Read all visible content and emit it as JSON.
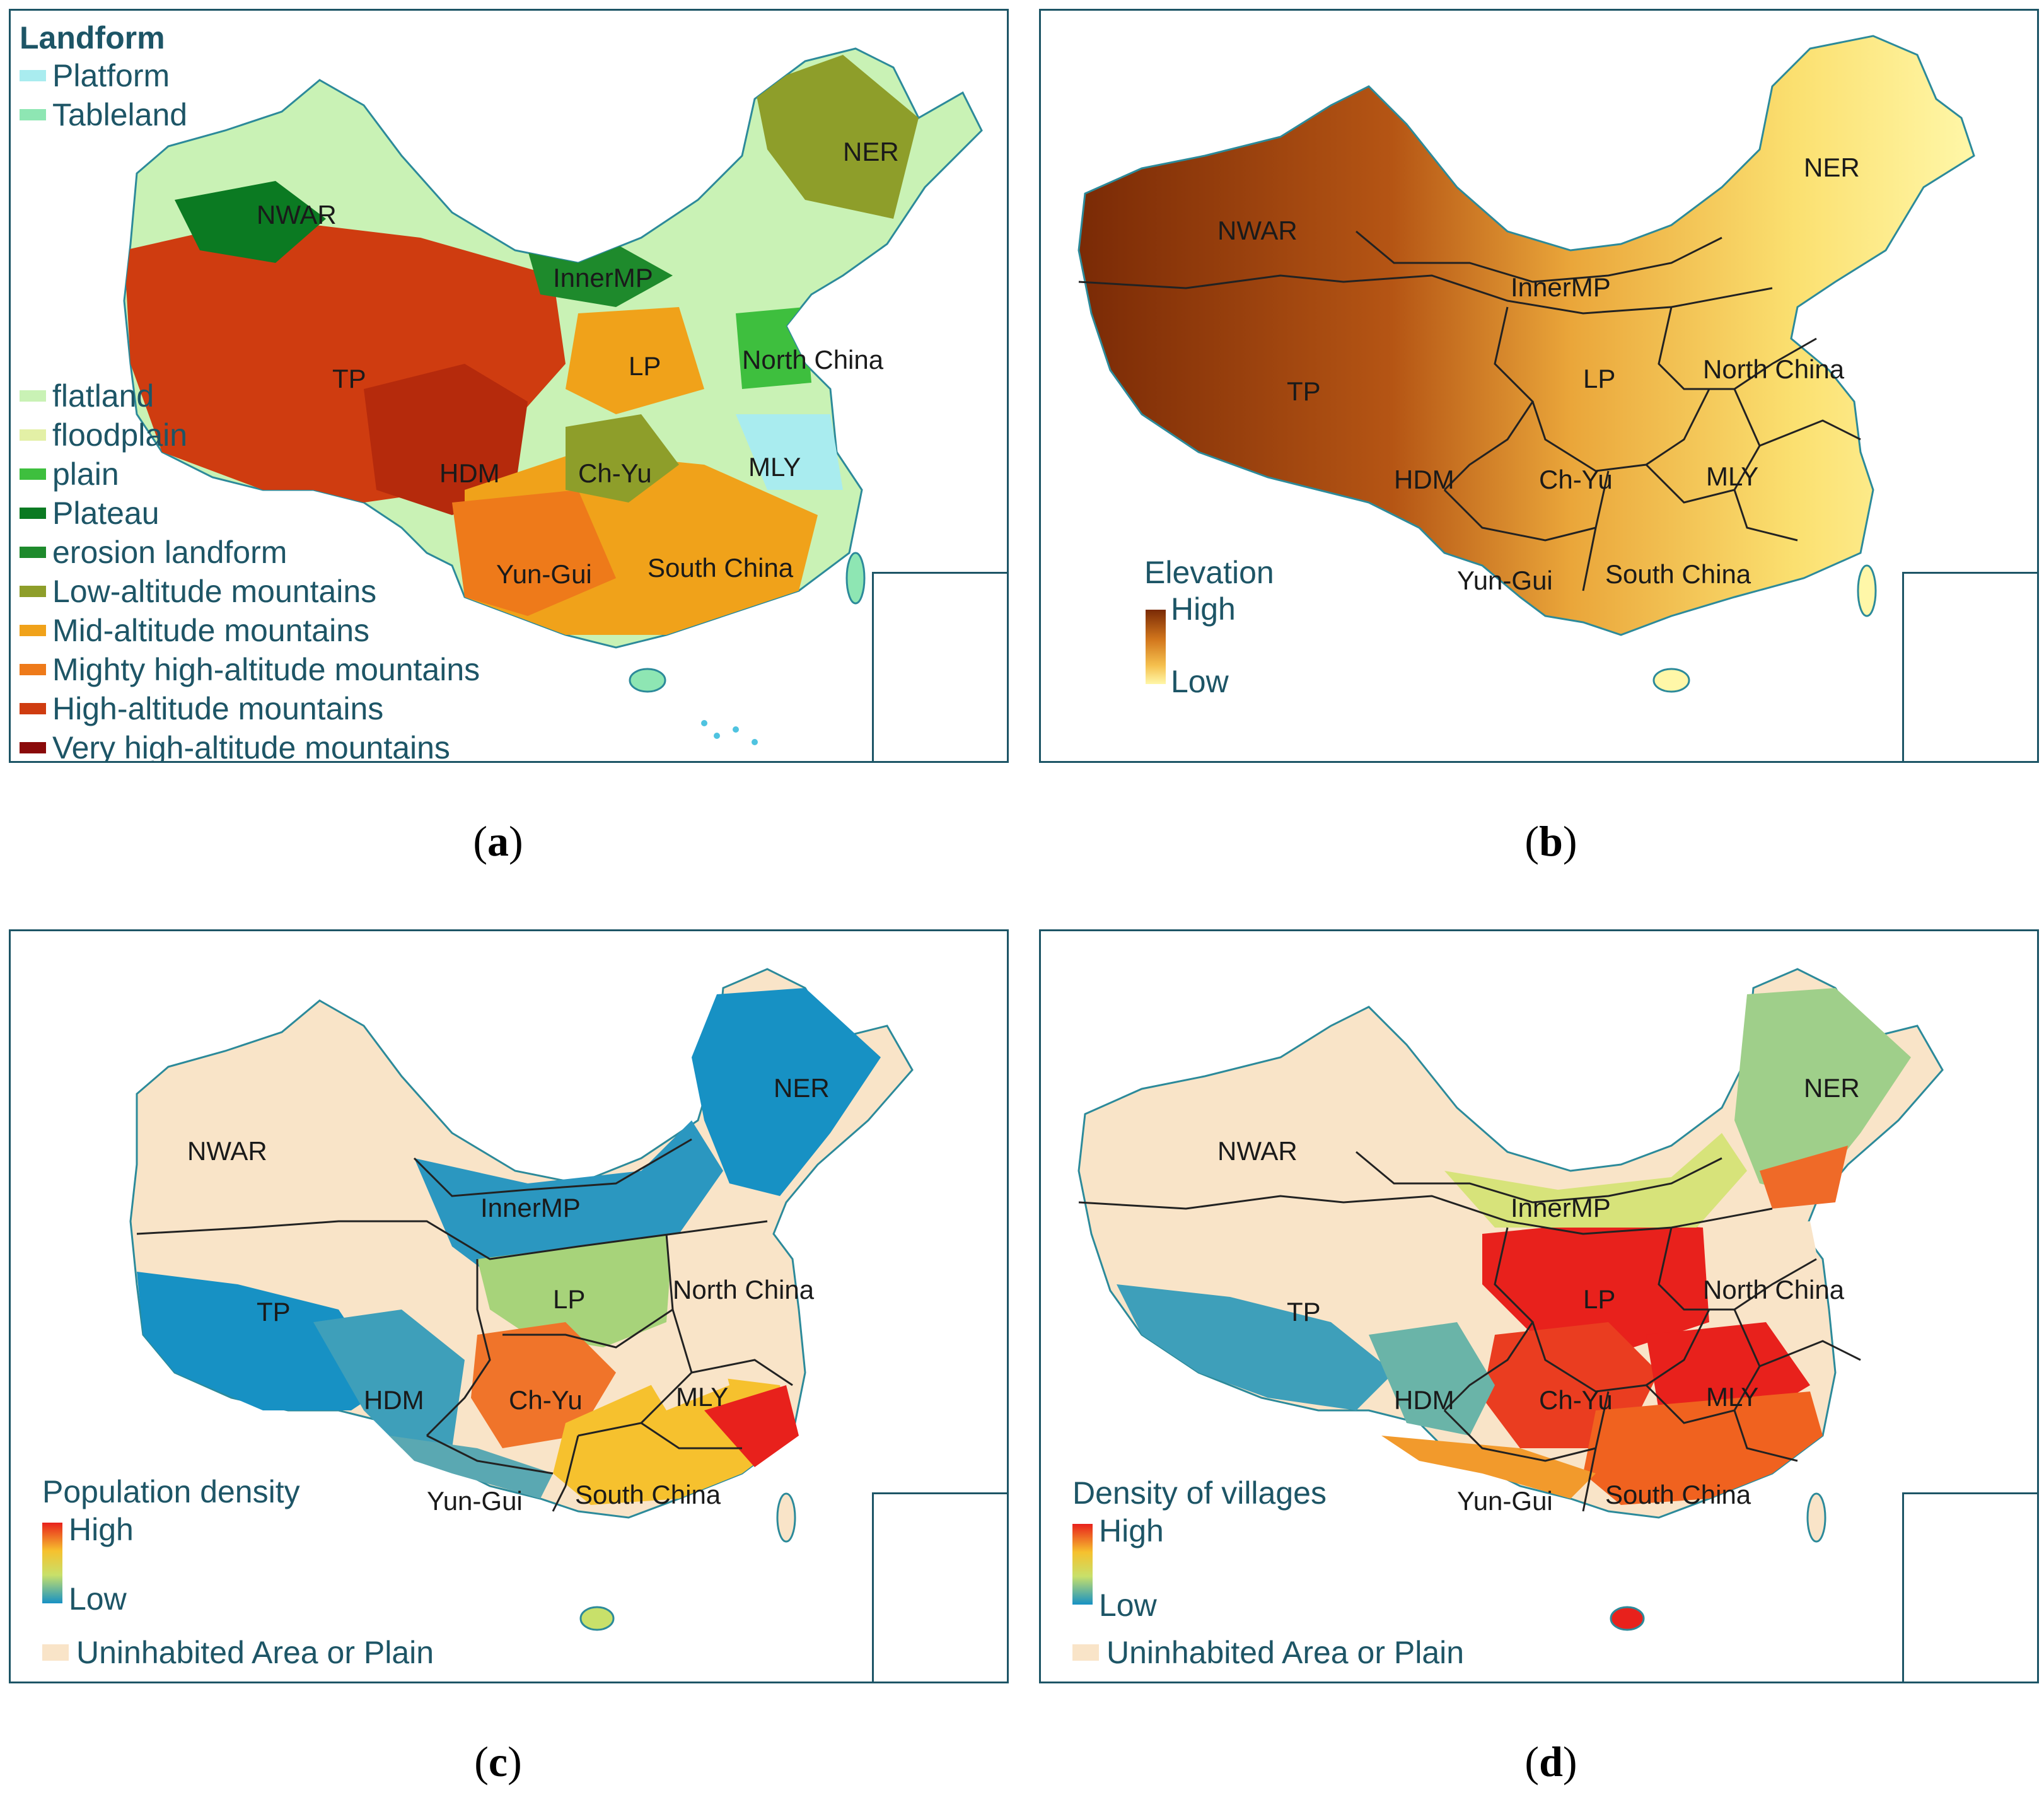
{
  "panels": {
    "a": {
      "caption": "a",
      "legend_title": "Landform",
      "legend_top": [
        {
          "label": "Platform",
          "color": "#a9ecef"
        },
        {
          "label": "Tableland",
          "color": "#8ee6b3"
        }
      ],
      "legend_bottom": [
        {
          "label": "flatland",
          "color": "#c9f2b5"
        },
        {
          "label": "floodplain",
          "color": "#e3f0a6"
        },
        {
          "label": "plain",
          "color": "#3ebf3e"
        },
        {
          "label": "Plateau",
          "color": "#0b7a22"
        },
        {
          "label": "erosion landform",
          "color": "#1e8a2c"
        },
        {
          "label": "Low-altitude mountains",
          "color": "#8e9e2a"
        },
        {
          "label": "Mid-altitude mountains",
          "color": "#f0a21a"
        },
        {
          "label": "Mighty high-altitude mountains",
          "color": "#ee7a1a"
        },
        {
          "label": "High-altitude mountains",
          "color": "#cf3c10"
        },
        {
          "label": "Very high-altitude mountains",
          "color": "#8a0a0a"
        }
      ]
    },
    "b": {
      "caption": "b",
      "ramp_title": "Elevation",
      "ramp_high": "High",
      "ramp_low": "Low",
      "ramp_colors": [
        "#7a2a06",
        "#d2761c",
        "#f5c04e",
        "#fff7a8"
      ]
    },
    "c": {
      "caption": "c",
      "ramp_title": "Population density",
      "ramp_high": "High",
      "ramp_low": "Low",
      "uninhabited": "Uninhabited Area or Plain",
      "ramp_colors": [
        "#e8211c",
        "#f6c12e",
        "#c8e06a",
        "#1791c4"
      ]
    },
    "d": {
      "caption": "d",
      "ramp_title": "Density of villages",
      "ramp_high": "High",
      "ramp_low": "Low",
      "uninhabited": "Uninhabited Area or Plain",
      "ramp_colors": [
        "#e8211c",
        "#f6c12e",
        "#c8e06a",
        "#1791c4"
      ]
    }
  },
  "regions": {
    "NWAR": "NWAR",
    "InnerMP": "InnerMP",
    "NER": "NER",
    "TP": "TP",
    "LP": "LP",
    "NorthChina": "North China",
    "HDM": "HDM",
    "ChYu": "Ch-Yu",
    "MLY": "MLY",
    "YunGui": "Yun-Gui",
    "SouthChina": "South China"
  }
}
